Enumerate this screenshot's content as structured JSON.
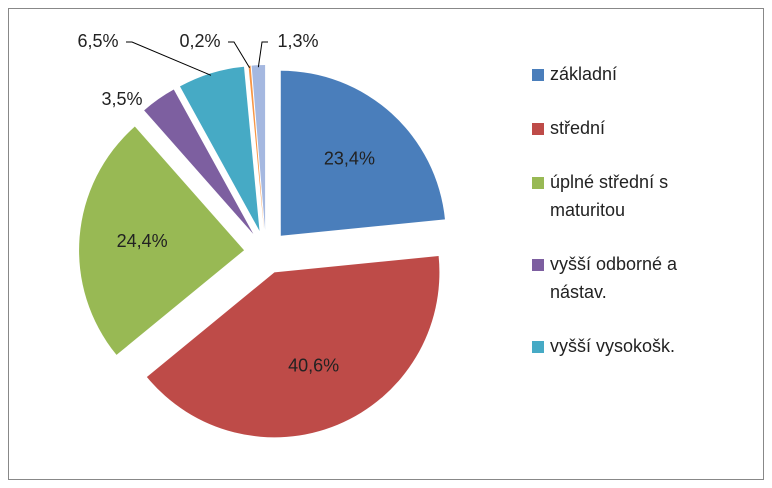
{
  "chart_data": {
    "type": "pie",
    "categories": [
      "základní",
      "střední",
      "úplné střední s maturitou",
      "vyšší odborné  a nástav.",
      "vyšší vysokošk.",
      null,
      null
    ],
    "values": [
      23.4,
      40.6,
      24.4,
      3.5,
      6.5,
      0.2,
      1.3
    ],
    "value_labels": [
      "23,4%",
      "40,6%",
      "24,4%",
      "3,5%",
      "6,5%",
      "0,2%",
      "1,3%"
    ],
    "colors": [
      "#4a7ebb",
      "#be4b48",
      "#98b954",
      "#7d5fa0",
      "#46aac5",
      "#f79646",
      "#a5b8e0"
    ]
  }
}
